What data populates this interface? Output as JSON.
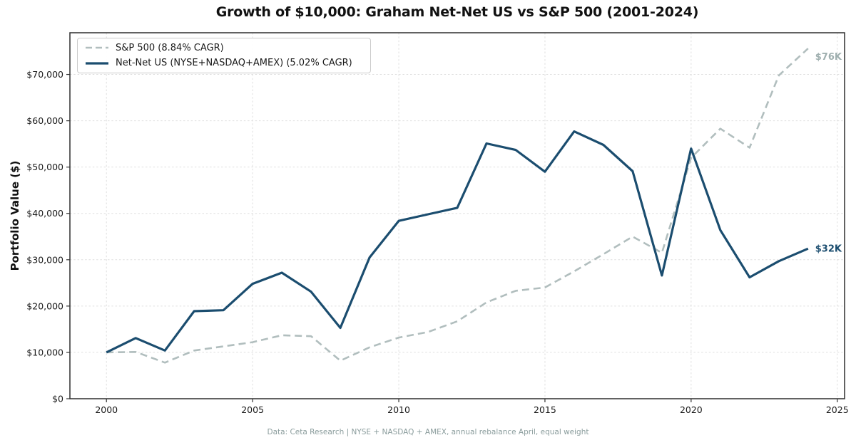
{
  "chart_data": {
    "type": "line",
    "title": "Growth of $10,000: Graham Net-Net US vs S&P 500 (2001-2024)",
    "ylabel": "Portfolio Value ($)",
    "footnote": "Data: Ceta Research | NYSE + NASDAQ + AMEX, annual rebalance April, equal weight",
    "x": [
      2000,
      2001,
      2002,
      2003,
      2004,
      2005,
      2006,
      2007,
      2008,
      2009,
      2010,
      2011,
      2012,
      2013,
      2014,
      2015,
      2016,
      2017,
      2018,
      2019,
      2020,
      2021,
      2022,
      2023,
      2024
    ],
    "series": [
      {
        "name": "S&P 500 (8.84% CAGR)",
        "style": "dashed",
        "color": "#b1bebe",
        "label_color": "#9fafaf",
        "end_label": "$76K",
        "values": [
          10000,
          10100,
          7800,
          10400,
          11300,
          12200,
          13700,
          13500,
          8200,
          11100,
          13200,
          14400,
          16700,
          20800,
          23300,
          24000,
          27500,
          31200,
          35000,
          31500,
          52000,
          58300,
          54200,
          69800,
          75600
        ]
      },
      {
        "name": "Net-Net US (NYSE+NASDAQ+AMEX) (5.02% CAGR)",
        "style": "solid",
        "color": "#1b4d6f",
        "label_color": "#1b4d6f",
        "end_label": "$32K",
        "values": [
          10000,
          13100,
          10400,
          18900,
          19100,
          24800,
          27200,
          23100,
          15300,
          30500,
          38400,
          39800,
          41200,
          55100,
          53700,
          49000,
          57700,
          54800,
          49100,
          26600,
          54000,
          36400,
          26200,
          29700,
          32400
        ]
      }
    ],
    "xlim": [
      1998.75,
      2025.25
    ],
    "ylim": [
      0,
      79000
    ],
    "xticks": [
      2000,
      2005,
      2010,
      2015,
      2020,
      2025
    ],
    "ytick_values": [
      0,
      10000,
      20000,
      30000,
      40000,
      50000,
      60000,
      70000
    ],
    "ytick_labels": [
      "$0",
      "$10,000",
      "$20,000",
      "$30,000",
      "$40,000",
      "$50,000",
      "$60,000",
      "$70,000"
    ],
    "grid": true,
    "legend_position": "upper left"
  }
}
